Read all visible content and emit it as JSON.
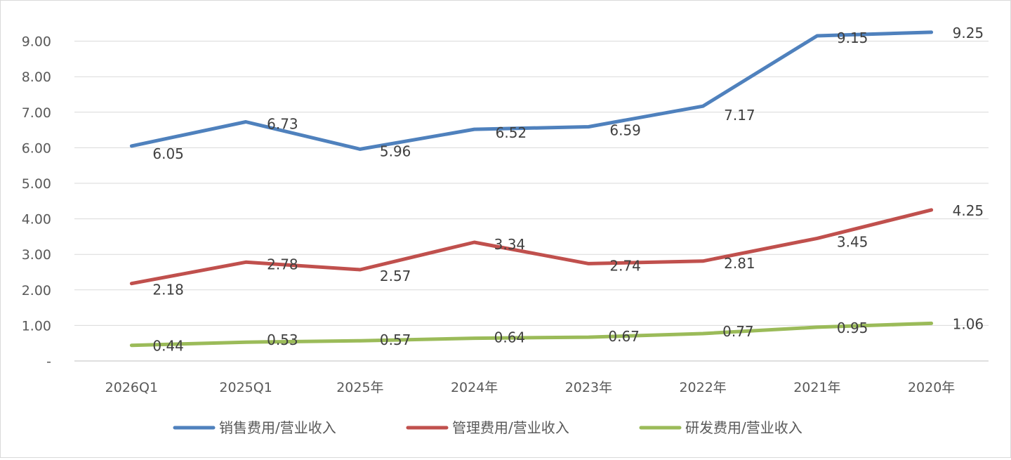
{
  "chart_data": {
    "type": "line",
    "title": "",
    "xlabel": "",
    "ylabel": "",
    "categories": [
      "2026Q1",
      "2025Q1",
      "2025年",
      "2024年",
      "2023年",
      "2022年",
      "2021年",
      "2020年"
    ],
    "y_ticks": [
      "-",
      "1.00",
      "2.00",
      "3.00",
      "4.00",
      "5.00",
      "6.00",
      "7.00",
      "8.00",
      "9.00"
    ],
    "ylim": [
      0,
      9.5
    ],
    "grid": true,
    "legend_position": "bottom",
    "series": [
      {
        "name": "销售费用/营业收入",
        "color": "#4f81bd",
        "values": [
          6.05,
          6.73,
          5.96,
          6.52,
          6.59,
          7.17,
          9.15,
          9.25
        ],
        "labels": [
          "6.05",
          "6.73",
          "5.96",
          "6.52",
          "6.59",
          "7.17",
          "9.15",
          "9.25"
        ]
      },
      {
        "name": "管理费用/营业收入",
        "color": "#c0504d",
        "values": [
          2.18,
          2.78,
          2.57,
          3.34,
          2.74,
          2.81,
          3.45,
          4.25
        ],
        "labels": [
          "2.18",
          "2.78",
          "2.57",
          "3.34",
          "2.74",
          "2.81",
          "3.45",
          "4.25"
        ]
      },
      {
        "name": "研发费用/营业收入",
        "color": "#9bbb59",
        "values": [
          0.44,
          0.53,
          0.57,
          0.64,
          0.67,
          0.77,
          0.95,
          1.06
        ],
        "labels": [
          "0.44",
          "0.53",
          "0.57",
          "0.64",
          "0.67",
          "0.77",
          "0.95",
          "1.06"
        ]
      }
    ]
  }
}
